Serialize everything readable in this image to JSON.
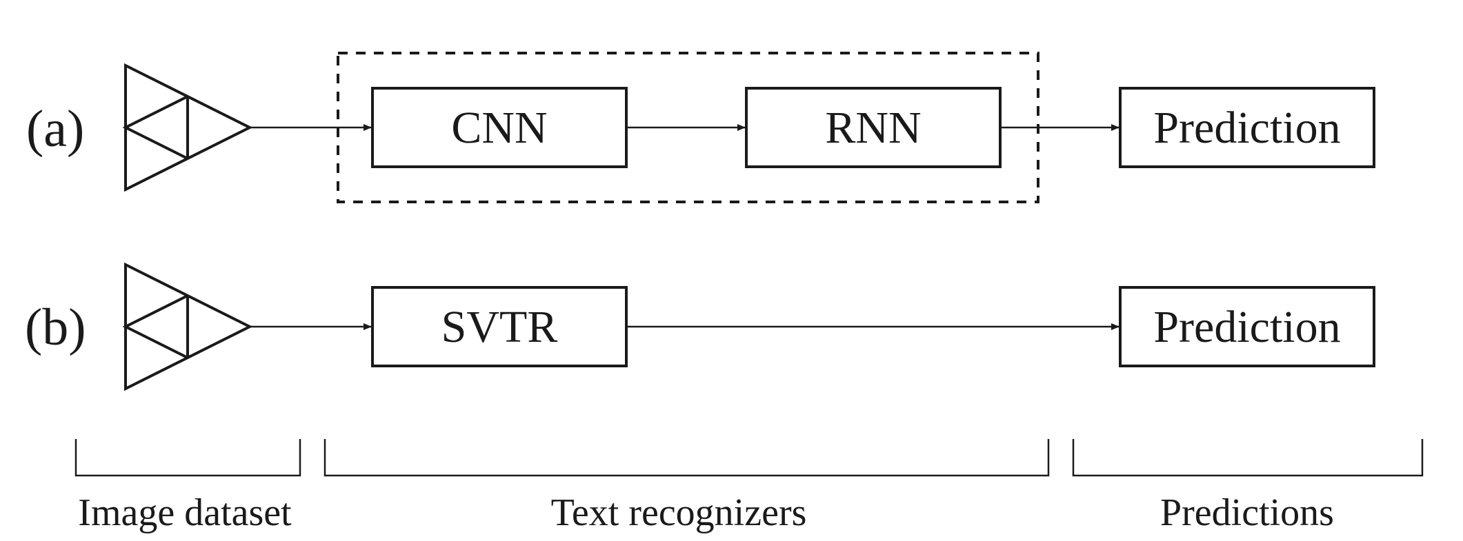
{
  "rows": {
    "a": {
      "label": "(a)",
      "cnn_label": "CNN",
      "rnn_label": "RNN",
      "prediction_label": "Prediction"
    },
    "b": {
      "label": "(b)",
      "svtr_label": "SVTR",
      "prediction_label": "Prediction"
    }
  },
  "groups": {
    "image_dataset": "Image dataset",
    "text_recognizers": "Text recognizers",
    "predictions": "Predictions"
  }
}
